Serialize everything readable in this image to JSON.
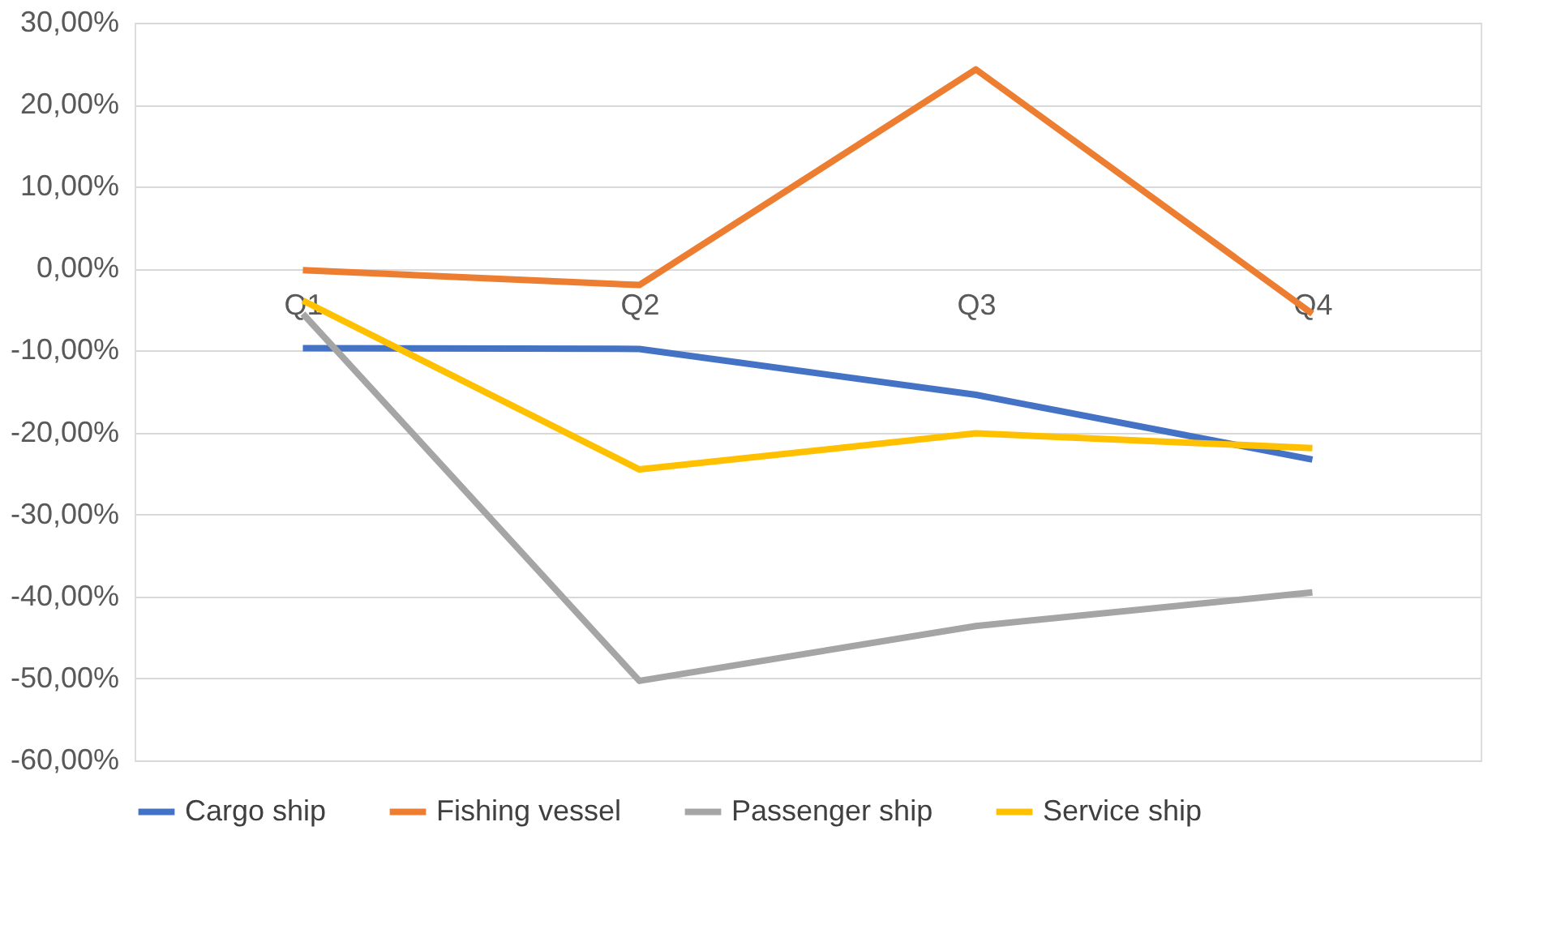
{
  "chart_data": {
    "type": "line",
    "categories": [
      "Q1",
      "Q2",
      "Q3",
      "Q4"
    ],
    "series": [
      {
        "name": "Cargo ship",
        "color": "#4472c4",
        "values": [
          -9.7,
          -9.8,
          -15.4,
          -23.3
        ]
      },
      {
        "name": "Fishing vessel",
        "color": "#ed7d31",
        "values": [
          -0.2,
          -2.0,
          24.3,
          -5.5
        ]
      },
      {
        "name": "Passenger ship",
        "color": "#a5a5a5",
        "values": [
          -5.5,
          -50.3,
          -43.6,
          -39.5
        ]
      },
      {
        "name": "Service ship",
        "color": "#ffc000",
        "values": [
          -3.9,
          -24.5,
          -20.1,
          -21.9
        ]
      }
    ],
    "ylim": [
      -60,
      30
    ],
    "yticks": [
      {
        "value": 30,
        "label": "30,00%"
      },
      {
        "value": 20,
        "label": "20,00%"
      },
      {
        "value": 10,
        "label": "10,00%"
      },
      {
        "value": 0,
        "label": "0,00%"
      },
      {
        "value": -10,
        "label": "-10,00%"
      },
      {
        "value": -20,
        "label": "-20,00%"
      },
      {
        "value": -30,
        "label": "-30,00%"
      },
      {
        "value": -40,
        "label": "-40,00%"
      },
      {
        "value": -50,
        "label": "-50,00%"
      },
      {
        "value": -60,
        "label": "-60,00%"
      }
    ],
    "grid": "y",
    "legend": "bottom",
    "marker": "none",
    "line_style": "solid"
  }
}
